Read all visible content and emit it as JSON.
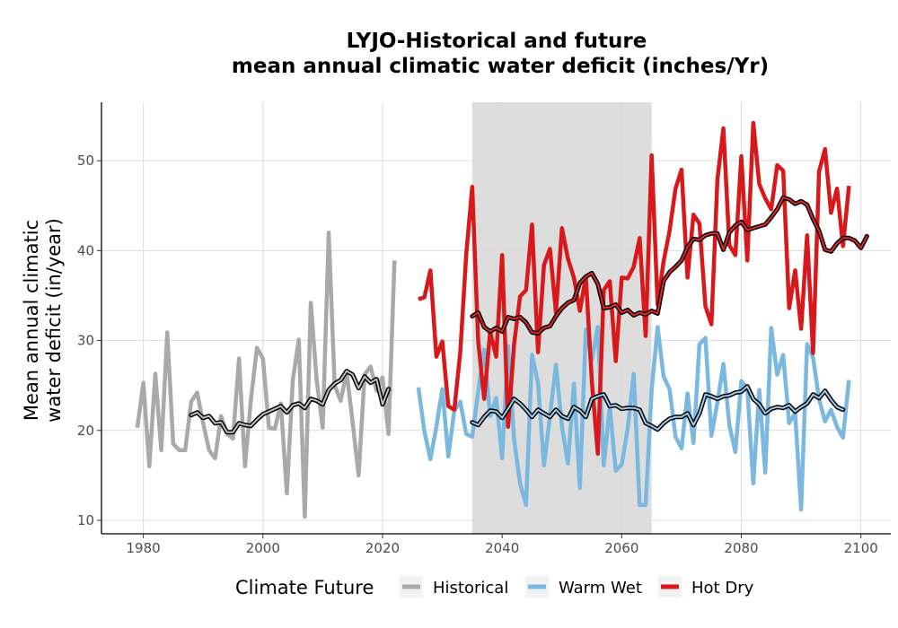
{
  "chart_data": {
    "type": "line",
    "title_lines": [
      "LYJO-Historical and future",
      "mean annual climatic water deficit (inches/Yr)"
    ],
    "ylabel_lines": [
      "Mean annual climatic",
      "water deficit (in/year)"
    ],
    "xlabel": "",
    "xlim": [
      1973,
      2105
    ],
    "ylim": [
      8.5,
      56.5
    ],
    "x_ticks": [
      1980,
      2000,
      2020,
      2040,
      2060,
      2080,
      2100
    ],
    "y_ticks": [
      10,
      20,
      30,
      40,
      50
    ],
    "grid": true,
    "shaded_period": [
      2035,
      2065
    ],
    "legend": {
      "title": "Climate Future",
      "position": "bottom",
      "entries": [
        {
          "label": "Historical",
          "color": "#A9A9A9"
        },
        {
          "label": "Warm Wet",
          "color": "#7BB8E0"
        },
        {
          "label": "Hot Dry",
          "color": "#D7191C"
        }
      ]
    },
    "series": [
      {
        "name": "Historical",
        "color": "#A9A9A9",
        "x_start": 1979,
        "values": [
          20.3,
          25.3,
          16.0,
          26.3,
          17.8,
          30.9,
          18.5,
          17.8,
          17.8,
          23.2,
          24.2,
          20.8,
          17.8,
          16.9,
          21.6,
          19.6,
          19.1,
          28.0,
          16.0,
          23.5,
          29.2,
          28.0,
          20.3,
          20.2,
          23.0,
          13.0,
          25.6,
          30.1,
          10.4,
          34.2,
          25.5,
          20.3,
          42.0,
          25.0,
          23.3,
          26.5,
          20.9,
          15.0,
          26.2,
          27.1,
          24.4,
          25.9,
          19.6,
          38.9
        ]
      },
      {
        "name": "Warm Wet",
        "color": "#7BB8E0",
        "x_start": 2026,
        "values": [
          24.8,
          19.9,
          16.8,
          20.4,
          24.6,
          17.1,
          22.2,
          23.2,
          19.6,
          19.3,
          24.3,
          29.0,
          21.6,
          23.6,
          16.9,
          29.4,
          19.0,
          14.1,
          11.7,
          28.4,
          25.3,
          16.1,
          21.6,
          27.3,
          20.5,
          16.3,
          25.2,
          13.6,
          31.2,
          27.8,
          31.5,
          16.1,
          22.7,
          15.5,
          16.2,
          20.2,
          26.3,
          11.7,
          11.7,
          24.5,
          31.5,
          26.0,
          24.6,
          19.3,
          18.0,
          24.1,
          18.6,
          29.6,
          30.3,
          19.4,
          23.1,
          27.4,
          20.6,
          17.6,
          25.5,
          24.7,
          14.1,
          24.5,
          15.3,
          31.4,
          26.2,
          28.4,
          20.8,
          21.9,
          11.2,
          29.6,
          28.1,
          23.5,
          21.0,
          22.3,
          20.4,
          19.2,
          25.6
        ]
      },
      {
        "name": "Hot Dry",
        "color": "#D7191C",
        "x_start": 2026,
        "values": [
          34.6,
          34.8,
          37.8,
          28.2,
          29.9,
          22.7,
          22.3,
          28.7,
          39.6,
          47.1,
          29.9,
          23.5,
          31.0,
          28.2,
          39.5,
          20.4,
          29.6,
          34.9,
          35.6,
          42.9,
          28.7,
          38.4,
          40.2,
          33.1,
          42.5,
          39.1,
          37.0,
          33.3,
          37.1,
          25.5,
          17.4,
          35.6,
          36.6,
          27.7,
          37.0,
          36.9,
          38.2,
          41.4,
          30.5,
          50.6,
          34.0,
          38.8,
          42.2,
          46.9,
          49.0,
          37.0,
          44.0,
          43.0,
          33.8,
          31.8,
          47.9,
          53.6,
          40.6,
          39.5,
          50.5,
          38.9,
          54.2,
          47.4,
          45.8,
          44.6,
          49.5,
          48.9,
          33.6,
          37.8,
          31.3,
          41.7,
          28.6,
          48.8,
          51.3,
          44.2,
          46.9,
          40.5,
          47.2
        ]
      },
      {
        "name": "Historical 10-yr rolling mean",
        "color": "#000000",
        "x_start": 1988,
        "values": [
          21.7,
          22.0,
          21.4,
          21.6,
          20.8,
          20.9,
          19.8,
          19.8,
          20.8,
          20.6,
          20.5,
          21.2,
          21.8,
          22.1,
          22.4,
          22.7,
          22.0,
          22.8,
          23.0,
          22.5,
          23.5,
          23.3,
          22.9,
          24.5,
          25.2,
          25.6,
          26.6,
          26.2,
          24.7,
          26.0,
          25.3,
          25.7,
          22.9,
          24.6
        ]
      },
      {
        "name": "Warm Wet 10-yr rolling mean",
        "color": "#000000",
        "x_start": 2035,
        "values": [
          20.9,
          20.6,
          21.5,
          22.2,
          22.1,
          21.4,
          22.4,
          23.5,
          23.0,
          22.3,
          21.5,
          22.3,
          21.9,
          21.5,
          22.3,
          21.6,
          21.3,
          22.6,
          22.2,
          21.5,
          23.5,
          23.8,
          24.0,
          22.7,
          22.8,
          22.4,
          22.5,
          22.5,
          22.3,
          20.8,
          20.5,
          20.1,
          20.8,
          21.3,
          21.5,
          21.5,
          21.9,
          20.6,
          21.9,
          24.0,
          23.8,
          23.5,
          23.8,
          23.9,
          24.2,
          24.3,
          24.9,
          23.5,
          22.9,
          21.9,
          22.4,
          22.6,
          22.5,
          22.8,
          22.1,
          22.6,
          23.0,
          24.0,
          23.6,
          24.4,
          23.4,
          22.6,
          22.3
        ]
      },
      {
        "name": "Hot Dry 10-yr rolling mean",
        "color": "#000000",
        "x_start": 2035,
        "values": [
          32.7,
          33.1,
          31.5,
          31.0,
          31.4,
          31.0,
          32.6,
          32.4,
          32.6,
          32.0,
          30.9,
          30.8,
          31.4,
          31.6,
          32.7,
          33.6,
          34.2,
          34.5,
          36.4,
          37.1,
          37.5,
          36.3,
          33.6,
          33.7,
          34.0,
          33.1,
          33.4,
          32.8,
          33.1,
          32.9,
          33.3,
          33.0,
          36.6,
          37.6,
          38.2,
          38.9,
          40.4,
          41.3,
          41.2,
          41.7,
          41.9,
          41.9,
          40.1,
          42.0,
          42.8,
          43.2,
          42.3,
          42.5,
          42.7,
          42.9,
          43.7,
          44.6,
          45.9,
          45.7,
          45.2,
          45.5,
          45.1,
          43.5,
          42.2,
          40.1,
          39.9,
          40.8,
          41.4,
          41.4,
          41.1,
          40.3,
          41.6
        ]
      }
    ]
  }
}
